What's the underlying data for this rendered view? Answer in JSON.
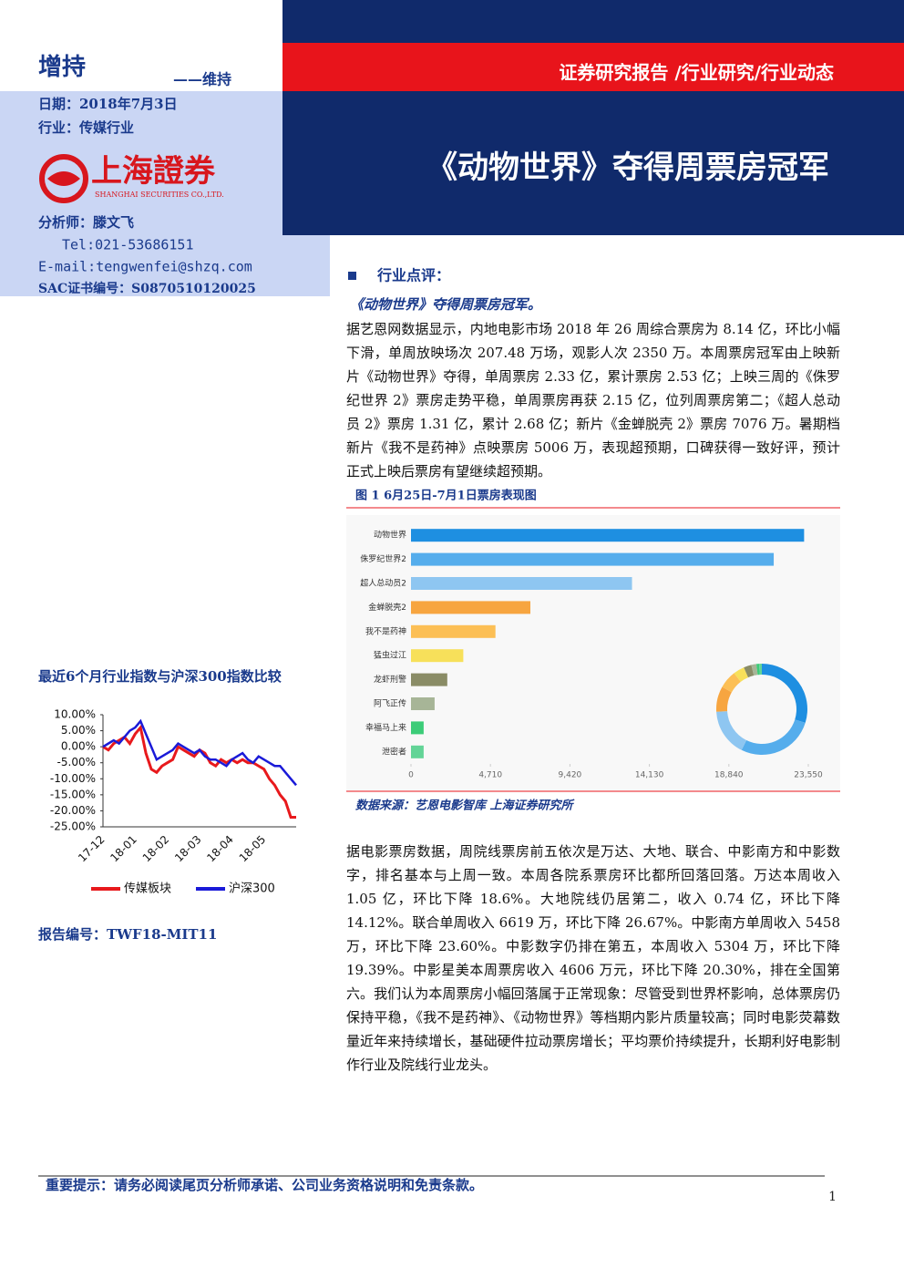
{
  "rating": "增持",
  "rating_prev": "——维持",
  "date": "日期：2018年7月3日",
  "industry": "行业：传媒行业",
  "logo": {
    "cn": "上海證券",
    "en": "SHANGHAI SECURITIES CO.,LTD."
  },
  "analyst": "分析师：滕文飞",
  "tel": "Tel:021-53686151",
  "email": "E-mail:tengwenfei@shzq.com",
  "sac": "SAC证书编号：S0870510120025",
  "header": {
    "category": "证券研究报告 /行业研究/行业动态",
    "title": "《动物世界》夺得周票房冠军"
  },
  "section": "行业点评：",
  "lead": "《动物世界》夺得周票房冠军。",
  "paragraphs": [
    "据艺恩网数据显示，内地电影市场 2018 年 26 周综合票房为 8.14 亿，环比小幅下滑，单周放映场次 207.48 万场，观影人次 2350 万。本周票房冠军由上映新片《动物世界》夺得，单周票房 2.33 亿，累计票房 2.53 亿；上映三周的《侏罗纪世界 2》票房走势平稳，单周票房再获 2.15 亿，位列周票房第二；《超人总动员 2》票房 1.31 亿，累计 2.68 亿；新片《金蝉脱壳 2》票房 7076 万。暑期档新片《我不是药神》点映票房 5006 万，表现超预期，口碑获得一致好评，预计正式上映后票房有望继续超预期。",
    "据电影票房数据，周院线票房前五依次是万达、大地、联合、中影南方和中影数字，排名基本与上周一致。本周各院系票房环比都所回落回落。万达本周收入 1.05 亿，环比下降 18.6%。大地院线仍居第二，收入 0.74 亿，环比下降 14.12%。联合单周收入 6619 万，环比下降 26.67%。中影南方单周收入 5458 万，环比下降 23.60%。中影数字仍排在第五，本周收入 5304 万，环比下降 19.39%。中影星美本周票房收入 4606 万元，环比下降 20.30%，排在全国第六。我们认为本周票房小幅回落属于正常现象：尽管受到世界杯影响，总体票房仍保持平稳，《我不是药神》、《动物世界》等档期内影片质量较高；同时电影荧幕数量近年来持续增长，基础硬件拉动票房增长；平均票价持续提升，长期利好电影制作行业及院线行业龙头。"
  ],
  "figure": {
    "caption": "图 1 6月25日-7月1日票房表现图",
    "source": "数据来源：艺恩电影智库 上海证券研究所"
  },
  "report_no": "报告编号：TWF18-MIT11",
  "footer": "重要提示：请务必阅读尾页分析师承诺、公司业务资格说明和免责条款。",
  "page_number": "1",
  "chart_data": [
    {
      "type": "hbar",
      "inset": "donut",
      "categories": [
        "动物世界",
        "侏罗纪世界2",
        "超人总动员2",
        "金蝉脱壳2",
        "我不是药神",
        "猛虫过江",
        "龙虾刑警",
        "阿飞正传",
        "幸福马上来",
        "泄密者"
      ],
      "values": [
        23300,
        21500,
        13100,
        7076,
        5006,
        3100,
        2150,
        1400,
        750,
        750
      ],
      "colors": [
        "#1e8fe1",
        "#55adec",
        "#8ec6f1",
        "#f7a540",
        "#fcbf55",
        "#f7e05a",
        "#8a8c66",
        "#a7b597",
        "#3ccc78",
        "#63d497"
      ],
      "xlim": [
        0,
        23550
      ],
      "xticks": [
        0,
        {
          "value": 4710,
          "label": "4,710"
        },
        {
          "value": 9420,
          "label": "9,420"
        },
        {
          "value": 14130,
          "label": "14,130"
        },
        {
          "value": 18840,
          "label": "18,840"
        },
        {
          "value": 23550,
          "label": "23,550"
        }
      ]
    },
    {
      "type": "line",
      "title": "最近6个月行业指数与沪深300指数比较",
      "x": [
        "17-12",
        null,
        null,
        null,
        null,
        null,
        "18-01",
        null,
        null,
        null,
        null,
        null,
        "18-02",
        null,
        null,
        null,
        null,
        null,
        "18-03",
        null,
        null,
        null,
        null,
        null,
        "18-04",
        null,
        null,
        null,
        null,
        null,
        "18-05",
        null,
        null,
        null,
        null,
        null,
        null
      ],
      "series": [
        {
          "name": "传媒板块",
          "color": "#e8191c",
          "values": [
            0,
            -1,
            1,
            2,
            3,
            1,
            4,
            6,
            -2,
            -7,
            -8,
            -6,
            -5,
            -4,
            0,
            -1,
            -2,
            -3,
            -1,
            -2,
            -5,
            -6,
            -4,
            -5,
            -4,
            -5,
            -4,
            -5,
            -5,
            -6,
            -7,
            -10,
            -12,
            -15,
            -17,
            -22,
            -22
          ]
        },
        {
          "name": "沪深300",
          "color": "#1a1ad8",
          "values": [
            0,
            1,
            2,
            1,
            3,
            5,
            6,
            8,
            4,
            0,
            -4,
            -3,
            -2,
            -1,
            1,
            0,
            -1,
            -2,
            -1,
            -3,
            -4,
            -4,
            -5,
            -6,
            -4,
            -3,
            -2,
            -4,
            -5,
            -3,
            -4,
            -5,
            -6,
            -6,
            -8,
            -10,
            -12
          ]
        }
      ],
      "ylim": [
        -25,
        10
      ],
      "yticks": [
        {
          "value": -25,
          "label": "-25.00%"
        },
        {
          "value": -20,
          "label": "-20.00%"
        },
        {
          "value": -15,
          "label": "-15.00%"
        },
        {
          "value": -10,
          "label": "-10.00%"
        },
        {
          "value": -5,
          "label": "-5.00%"
        },
        {
          "value": 0,
          "label": "0.00%"
        },
        {
          "value": 5,
          "label": "5.00%"
        },
        {
          "value": 10,
          "label": "10.00%"
        }
      ]
    }
  ]
}
